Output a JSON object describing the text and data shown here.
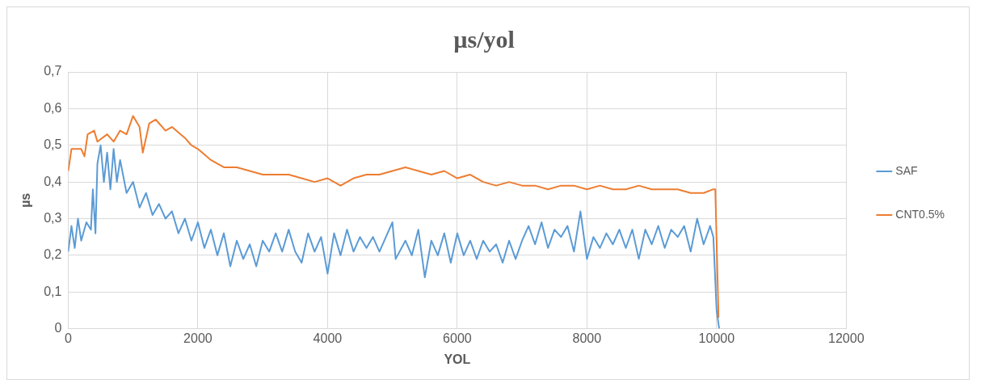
{
  "chart_data": {
    "type": "line",
    "title": "µs/yol",
    "xlabel": "YOL",
    "ylabel": "µs",
    "xlim": [
      0,
      12000
    ],
    "xticks": [
      0,
      2000,
      4000,
      6000,
      8000,
      10000,
      12000
    ],
    "ylim": [
      0,
      0.7
    ],
    "yticks": [
      {
        "value": 0,
        "label": "0"
      },
      {
        "value": 0.1,
        "label": "0,1"
      },
      {
        "value": 0.2,
        "label": "0,2"
      },
      {
        "value": 0.3,
        "label": "0,3"
      },
      {
        "value": 0.4,
        "label": "0,4"
      },
      {
        "value": 0.5,
        "label": "0,5"
      },
      {
        "value": 0.6,
        "label": "0,6"
      },
      {
        "value": 0.7,
        "label": "0,7"
      }
    ],
    "grid": true,
    "legend": "right",
    "marker": "none",
    "line_style": "solid",
    "series": [
      {
        "name": "SAF",
        "color": "#5b9bd5",
        "x": [
          0,
          50,
          100,
          150,
          200,
          280,
          350,
          380,
          420,
          450,
          500,
          550,
          600,
          650,
          700,
          750,
          800,
          900,
          1000,
          1100,
          1200,
          1300,
          1400,
          1500,
          1600,
          1700,
          1800,
          1900,
          2000,
          2100,
          2200,
          2300,
          2400,
          2500,
          2600,
          2700,
          2800,
          2900,
          3000,
          3100,
          3200,
          3300,
          3400,
          3500,
          3600,
          3700,
          3800,
          3900,
          4000,
          4100,
          4200,
          4300,
          4400,
          4500,
          4600,
          4700,
          4800,
          4900,
          5000,
          5050,
          5200,
          5300,
          5400,
          5500,
          5600,
          5700,
          5800,
          5900,
          6000,
          6100,
          6200,
          6300,
          6400,
          6500,
          6600,
          6700,
          6800,
          6900,
          7000,
          7100,
          7200,
          7300,
          7400,
          7500,
          7600,
          7700,
          7800,
          7900,
          8000,
          8100,
          8200,
          8300,
          8400,
          8500,
          8600,
          8700,
          8800,
          8900,
          9000,
          9100,
          9200,
          9300,
          9400,
          9500,
          9600,
          9700,
          9800,
          9900,
          9950,
          10000,
          10040
        ],
        "values": [
          0.21,
          0.28,
          0.22,
          0.3,
          0.24,
          0.29,
          0.27,
          0.38,
          0.26,
          0.45,
          0.5,
          0.4,
          0.48,
          0.38,
          0.49,
          0.4,
          0.46,
          0.37,
          0.4,
          0.33,
          0.37,
          0.31,
          0.34,
          0.3,
          0.32,
          0.26,
          0.3,
          0.24,
          0.29,
          0.22,
          0.27,
          0.2,
          0.26,
          0.17,
          0.24,
          0.19,
          0.23,
          0.17,
          0.24,
          0.21,
          0.26,
          0.21,
          0.27,
          0.21,
          0.18,
          0.26,
          0.21,
          0.25,
          0.15,
          0.26,
          0.2,
          0.27,
          0.21,
          0.25,
          0.22,
          0.25,
          0.21,
          0.25,
          0.29,
          0.19,
          0.24,
          0.2,
          0.27,
          0.14,
          0.24,
          0.2,
          0.26,
          0.18,
          0.26,
          0.2,
          0.24,
          0.19,
          0.24,
          0.21,
          0.23,
          0.18,
          0.24,
          0.19,
          0.24,
          0.28,
          0.23,
          0.29,
          0.22,
          0.27,
          0.25,
          0.28,
          0.21,
          0.32,
          0.19,
          0.25,
          0.22,
          0.26,
          0.23,
          0.27,
          0.22,
          0.27,
          0.19,
          0.27,
          0.23,
          0.28,
          0.22,
          0.27,
          0.25,
          0.28,
          0.21,
          0.3,
          0.23,
          0.28,
          0.25,
          0.05,
          0
        ]
      },
      {
        "name": "CNT0.5%",
        "color": "#ed7d31",
        "x": [
          0,
          50,
          200,
          250,
          300,
          400,
          450,
          600,
          700,
          800,
          900,
          1000,
          1100,
          1150,
          1250,
          1350,
          1500,
          1600,
          1800,
          1900,
          2000,
          2200,
          2400,
          2600,
          2800,
          3000,
          3200,
          3400,
          3600,
          3800,
          4000,
          4100,
          4200,
          4400,
          4600,
          4800,
          5000,
          5200,
          5400,
          5600,
          5800,
          6000,
          6200,
          6400,
          6600,
          6800,
          7000,
          7200,
          7400,
          7600,
          7800,
          8000,
          8200,
          8400,
          8600,
          8800,
          9000,
          9200,
          9400,
          9600,
          9800,
          9950,
          9980,
          10030
        ],
        "values": [
          0.43,
          0.49,
          0.49,
          0.47,
          0.53,
          0.54,
          0.51,
          0.53,
          0.51,
          0.54,
          0.53,
          0.58,
          0.55,
          0.48,
          0.56,
          0.57,
          0.54,
          0.55,
          0.52,
          0.5,
          0.49,
          0.46,
          0.44,
          0.44,
          0.43,
          0.42,
          0.42,
          0.42,
          0.41,
          0.4,
          0.41,
          0.4,
          0.39,
          0.41,
          0.42,
          0.42,
          0.43,
          0.44,
          0.43,
          0.42,
          0.43,
          0.41,
          0.42,
          0.4,
          0.39,
          0.4,
          0.39,
          0.39,
          0.38,
          0.39,
          0.39,
          0.38,
          0.39,
          0.38,
          0.38,
          0.39,
          0.38,
          0.38,
          0.38,
          0.37,
          0.37,
          0.38,
          0.38,
          0.03
        ]
      }
    ]
  }
}
